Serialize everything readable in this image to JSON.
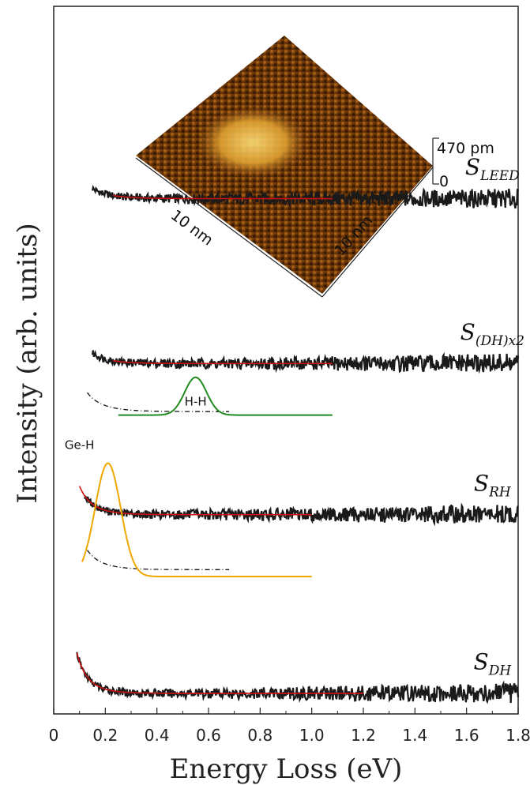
{
  "chart_data": {
    "type": "line",
    "xlabel": "Energy Loss (eV)",
    "ylabel": "Intensity (arb. units)",
    "xlim": [
      0,
      1.8
    ],
    "x_ticks": [
      "0",
      "0.2",
      "0.4",
      "0.6",
      "0.8",
      "1.0",
      "1.2",
      "1.4",
      "1.6",
      "1.8"
    ],
    "y_ticks_shown": false,
    "grid": false,
    "series": [
      {
        "name": "S_LEED",
        "label_main": "S",
        "label_sub": "LEED",
        "color": "#1a1a1a",
        "fit_color": "#cc1111",
        "offset": 0.72,
        "amplitude": 0.055,
        "decay": 0.11,
        "x_start": 0.15,
        "fit_x": [
          0.23,
          1.08
        ]
      },
      {
        "name": "S_(DH)x2",
        "label_main": "S",
        "label_sub": "(DH)x2",
        "color": "#1a1a1a",
        "fit_color": "#cc1111",
        "offset": 0.48,
        "amplitude": 0.065,
        "decay": 0.095,
        "x_start": 0.15,
        "fit_x": [
          0.23,
          1.08
        ]
      },
      {
        "name": "S_RH",
        "label_main": "S",
        "label_sub": "RH",
        "color": "#1a1a1a",
        "fit_color": "#cc1111",
        "offset": 0.26,
        "amplitude": 0.075,
        "decay": 0.085,
        "x_start": 0.12,
        "fit_x": [
          0.1,
          1.0
        ]
      },
      {
        "name": "S_DH",
        "label_main": "S",
        "label_sub": "DH",
        "color": "#1a1a1a",
        "fit_color": "#cc1111",
        "offset": 0.0,
        "amplitude": 0.09,
        "decay": 0.075,
        "x_start": 0.09,
        "fit_x": [
          0.09,
          1.2
        ]
      }
    ],
    "peaks": [
      {
        "label": "H-H",
        "center": 0.55,
        "width": 0.06,
        "height": 0.055,
        "baseline": 0.405,
        "x_range": [
          0.25,
          1.08
        ],
        "color": "#228b22"
      },
      {
        "label": "Ge-H",
        "center": 0.21,
        "width": 0.07,
        "height": 0.165,
        "baseline": 0.17,
        "x_range": [
          0.11,
          1.0
        ],
        "color": "#f0a800"
      }
    ],
    "inset": {
      "type": "3D STM topograph",
      "scale_top": "470 pm",
      "scale_bottom": "0",
      "axis_left": "10 nm",
      "axis_right": "10 nm"
    }
  }
}
